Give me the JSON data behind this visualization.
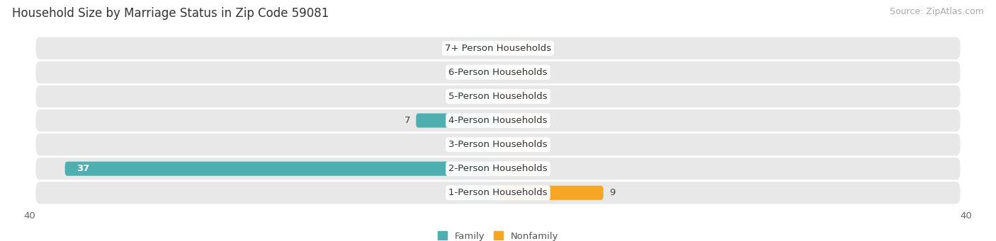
{
  "title": "Household Size by Marriage Status in Zip Code 59081",
  "source": "Source: ZipAtlas.com",
  "categories": [
    "7+ Person Households",
    "6-Person Households",
    "5-Person Households",
    "4-Person Households",
    "3-Person Households",
    "2-Person Households",
    "1-Person Households"
  ],
  "family_values": [
    0,
    0,
    0,
    7,
    0,
    37,
    0
  ],
  "nonfamily_values": [
    0,
    0,
    0,
    0,
    0,
    0,
    9
  ],
  "family_color": "#4DAFB0",
  "nonfamily_color": "#F5A623",
  "family_stub_color": "#92CDD0",
  "nonfamily_stub_color": "#F5C896",
  "xlim": [
    -40,
    40
  ],
  "background_color": "#f0f0f0",
  "row_bg_color": "#e8e8e8",
  "title_fontsize": 12,
  "source_fontsize": 9,
  "label_fontsize": 9.5,
  "value_fontsize": 9.5,
  "bar_height": 0.58,
  "stub_size": 3.5,
  "min_bar_for_label_inside": 10
}
